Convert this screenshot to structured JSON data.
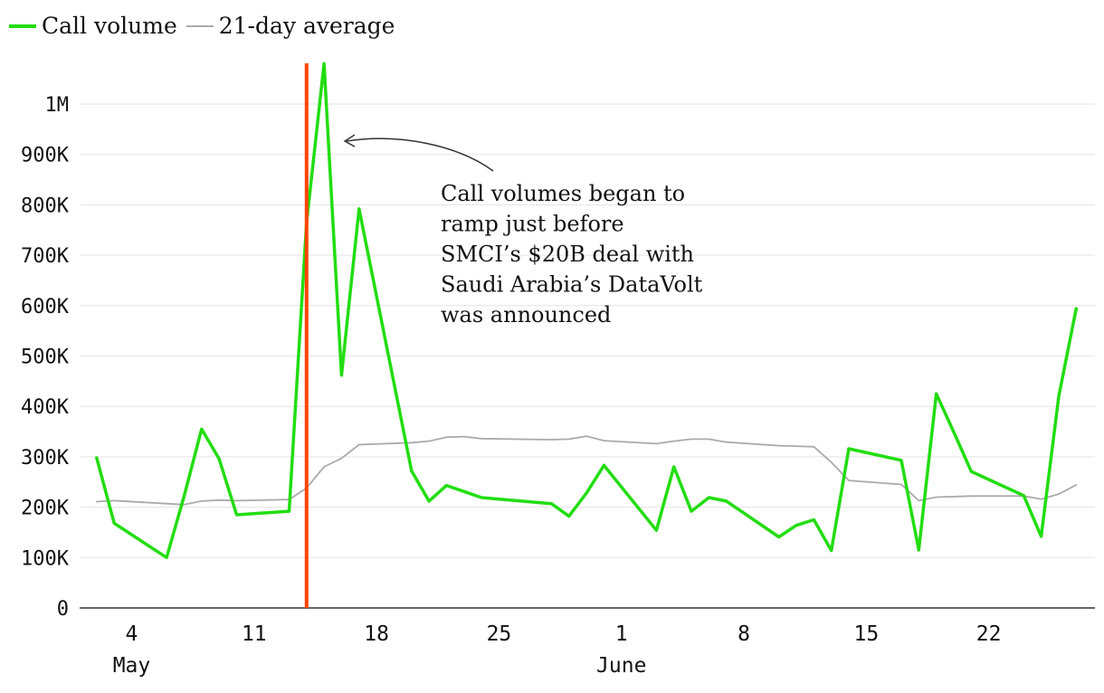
{
  "legend": {
    "volume_label": "Call volume",
    "avg_label": "21-day average"
  },
  "chart_data": {
    "type": "line",
    "x_domain": [
      "2024-05-01",
      "2024-06-26"
    ],
    "ylim": [
      0,
      1100000
    ],
    "y_ticks": [
      0,
      100000,
      200000,
      300000,
      400000,
      500000,
      600000,
      700000,
      800000,
      900000,
      1000000
    ],
    "y_tick_labels": [
      "0",
      "100K",
      "200K",
      "300K",
      "400K",
      "500K",
      "600K",
      "700K",
      "800K",
      "900K",
      "1M"
    ],
    "x_ticks": [
      {
        "date": "2024-05-04",
        "label": "4",
        "sublabel": "May"
      },
      {
        "date": "2024-05-11",
        "label": "11",
        "sublabel": ""
      },
      {
        "date": "2024-05-18",
        "label": "18",
        "sublabel": ""
      },
      {
        "date": "2024-05-25",
        "label": "25",
        "sublabel": ""
      },
      {
        "date": "2024-06-01",
        "label": "1",
        "sublabel": "June"
      },
      {
        "date": "2024-06-08",
        "label": "8",
        "sublabel": ""
      },
      {
        "date": "2024-06-15",
        "label": "15",
        "sublabel": ""
      },
      {
        "date": "2024-06-22",
        "label": "22",
        "sublabel": ""
      }
    ],
    "grid": true,
    "legend_position": "top-left",
    "event_marker": {
      "date": "2024-05-14",
      "color": "#ff4400"
    },
    "annotation": {
      "lines": [
        "Call volumes began to",
        "ramp just before",
        "SMCI’s $20B deal with",
        "Saudi Arabia’s DataVolt",
        "was announced"
      ]
    },
    "series": [
      {
        "name": "Call volume",
        "color": "#22dd11",
        "points": [
          [
            "2024-05-02",
            298000
          ],
          [
            "2024-05-03",
            168000
          ],
          [
            "2024-05-06",
            100000
          ],
          [
            "2024-05-07",
            222000
          ],
          [
            "2024-05-08",
            355000
          ],
          [
            "2024-05-09",
            296000
          ],
          [
            "2024-05-10",
            185000
          ],
          [
            "2024-05-13",
            192000
          ],
          [
            "2024-05-14",
            765000
          ],
          [
            "2024-05-15",
            1080000
          ],
          [
            "2024-05-16",
            462000
          ],
          [
            "2024-05-17",
            792000
          ],
          [
            "2024-05-20",
            272000
          ],
          [
            "2024-05-21",
            212000
          ],
          [
            "2024-05-22",
            243000
          ],
          [
            "2024-05-24",
            219000
          ],
          [
            "2024-05-28",
            207000
          ],
          [
            "2024-05-29",
            182000
          ],
          [
            "2024-05-30",
            228000
          ],
          [
            "2024-05-31",
            283000
          ],
          [
            "2024-06-03",
            154000
          ],
          [
            "2024-06-04",
            280000
          ],
          [
            "2024-06-05",
            192000
          ],
          [
            "2024-06-06",
            219000
          ],
          [
            "2024-06-07",
            212000
          ],
          [
            "2024-06-10",
            141000
          ],
          [
            "2024-06-11",
            164000
          ],
          [
            "2024-06-12",
            175000
          ],
          [
            "2024-06-13",
            114000
          ],
          [
            "2024-06-14",
            316000
          ],
          [
            "2024-06-17",
            293000
          ],
          [
            "2024-06-18",
            115000
          ],
          [
            "2024-06-19",
            425000
          ],
          [
            "2024-06-20",
            349000
          ],
          [
            "2024-06-21",
            271000
          ],
          [
            "2024-06-24",
            223000
          ],
          [
            "2024-06-25",
            142000
          ],
          [
            "2024-06-26",
            420000
          ],
          [
            "2024-06-27",
            594000
          ]
        ]
      },
      {
        "name": "21-day average",
        "color": "#aaaaaa",
        "points": [
          [
            "2024-05-02",
            211000
          ],
          [
            "2024-05-03",
            213000
          ],
          [
            "2024-05-06",
            207000
          ],
          [
            "2024-05-07",
            205000
          ],
          [
            "2024-05-08",
            212000
          ],
          [
            "2024-05-09",
            214000
          ],
          [
            "2024-05-10",
            213000
          ],
          [
            "2024-05-13",
            215000
          ],
          [
            "2024-05-14",
            238000
          ],
          [
            "2024-05-15",
            280000
          ],
          [
            "2024-05-16",
            297000
          ],
          [
            "2024-05-17",
            324000
          ],
          [
            "2024-05-20",
            328000
          ],
          [
            "2024-05-21",
            331000
          ],
          [
            "2024-05-22",
            339000
          ],
          [
            "2024-05-23",
            340000
          ],
          [
            "2024-05-24",
            336000
          ],
          [
            "2024-05-28",
            334000
          ],
          [
            "2024-05-29",
            335000
          ],
          [
            "2024-05-30",
            341000
          ],
          [
            "2024-05-31",
            332000
          ],
          [
            "2024-06-03",
            326000
          ],
          [
            "2024-06-04",
            331000
          ],
          [
            "2024-06-05",
            335000
          ],
          [
            "2024-06-06",
            335000
          ],
          [
            "2024-06-07",
            329000
          ],
          [
            "2024-06-10",
            322000
          ],
          [
            "2024-06-12",
            320000
          ],
          [
            "2024-06-13",
            289000
          ],
          [
            "2024-06-14",
            253000
          ],
          [
            "2024-06-17",
            245000
          ],
          [
            "2024-06-18",
            213000
          ],
          [
            "2024-06-19",
            220000
          ],
          [
            "2024-06-21",
            222000
          ],
          [
            "2024-06-24",
            222000
          ],
          [
            "2024-06-25",
            216000
          ],
          [
            "2024-06-26",
            226000
          ],
          [
            "2024-06-27",
            244000
          ]
        ]
      }
    ]
  }
}
